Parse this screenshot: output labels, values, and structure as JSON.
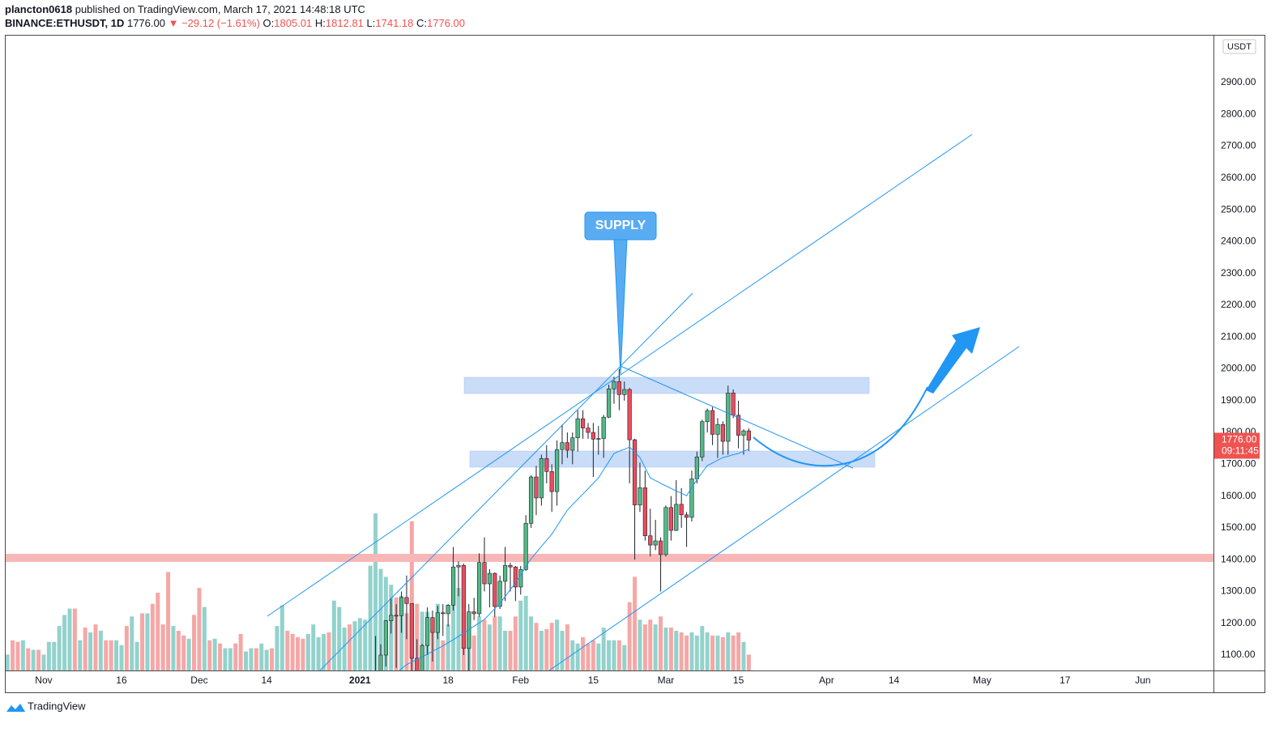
{
  "header": {
    "author": "plancton0618",
    "published": "published on TradingView.com, March 17, 2021 14:48:18 UTC",
    "symbol": "BINANCE:ETHUSDT, 1D",
    "last": "1776.00",
    "change": "▼ −29.12 (−1.61%)",
    "ohlc": [
      {
        "key": "O:",
        "value": "1805.01"
      },
      {
        "key": "H:",
        "value": "1812.81"
      },
      {
        "key": "L:",
        "value": "1741.18"
      },
      {
        "key": "C:",
        "value": "1776.00"
      }
    ]
  },
  "chart_data": {
    "type": "candlestick",
    "x": [
      64,
      65,
      66,
      67,
      68,
      69,
      70,
      71,
      72,
      73,
      74,
      75,
      76,
      77,
      78,
      79,
      80,
      81,
      82,
      83,
      84,
      85,
      86,
      87,
      88,
      89,
      90,
      91,
      92,
      93,
      94,
      95,
      96,
      97,
      98,
      99,
      100,
      101,
      102,
      103,
      104,
      105,
      106,
      107,
      108,
      109,
      110,
      111,
      112,
      113,
      114,
      115,
      116,
      117,
      118,
      119,
      120,
      121,
      122,
      123,
      124,
      125,
      126,
      127,
      128,
      129,
      130,
      131,
      132,
      133,
      134,
      135,
      136
    ],
    "open": [
      975,
      1041,
      1100,
      1208,
      1225,
      1224,
      1281,
      1262,
      1090,
      1044,
      1130,
      1218,
      1171,
      1233,
      1230,
      1257,
      1377,
      1382,
      1121,
      1236,
      1230,
      1391,
      1324,
      1357,
      1253,
      1332,
      1382,
      1377,
      1314,
      1369,
      1514,
      1660,
      1594,
      1718,
      1677,
      1614,
      1746,
      1768,
      1744,
      1783,
      1843,
      1814,
      1800,
      1779,
      1781,
      1848,
      1937,
      1960,
      1919,
      1935,
      1777,
      1572,
      1626,
      1475,
      1446,
      1459,
      1416,
      1564,
      1492,
      1574,
      1541,
      1533,
      1654,
      1723,
      1834,
      1869,
      1794,
      1825,
      1772,
      1924,
      1854,
      1791,
      1805.01
    ],
    "high": [
      1160,
      1134,
      1210,
      1280,
      1260,
      1300,
      1350,
      1263,
      1150,
      1135,
      1250,
      1240,
      1255,
      1260,
      1260,
      1440,
      1395,
      1388,
      1260,
      1280,
      1420,
      1470,
      1370,
      1360,
      1350,
      1440,
      1390,
      1380,
      1380,
      1540,
      1665,
      1695,
      1730,
      1760,
      1700,
      1775,
      1825,
      1800,
      1800,
      1870,
      1870,
      1830,
      1830,
      1820,
      1855,
      1950,
      1975,
      2000,
      1960,
      1940,
      1780,
      1705,
      1680,
      1560,
      1525,
      1470,
      1570,
      1600,
      1650,
      1625,
      1550,
      1680,
      1740,
      1840,
      1875,
      1880,
      1845,
      1835,
      1947,
      1935,
      1900,
      1810,
      1812.81
    ],
    "low": [
      890,
      986,
      1064,
      1168,
      1060,
      1170,
      1150,
      900,
      1030,
      1010,
      1100,
      1080,
      1150,
      1160,
      1190,
      1240,
      1285,
      1100,
      1050,
      1210,
      1220,
      1300,
      1250,
      1220,
      1245,
      1270,
      1300,
      1270,
      1290,
      1365,
      1500,
      1540,
      1570,
      1640,
      1550,
      1570,
      1700,
      1720,
      1700,
      1740,
      1780,
      1780,
      1660,
      1730,
      1720,
      1845,
      1890,
      1870,
      1900,
      1640,
      1400,
      1550,
      1460,
      1410,
      1430,
      1300,
      1410,
      1460,
      1490,
      1500,
      1440,
      1520,
      1640,
      1710,
      1800,
      1760,
      1720,
      1730,
      1730,
      1845,
      1750,
      1730,
      1741.18
    ],
    "close": [
      1040,
      1100,
      1208,
      1225,
      1224,
      1281,
      1262,
      1090,
      1044,
      1130,
      1218,
      1171,
      1233,
      1230,
      1257,
      1377,
      1382,
      1121,
      1236,
      1230,
      1391,
      1324,
      1357,
      1253,
      1332,
      1382,
      1377,
      1314,
      1369,
      1514,
      1660,
      1594,
      1718,
      1677,
      1614,
      1746,
      1768,
      1744,
      1783,
      1843,
      1814,
      1800,
      1779,
      1781,
      1848,
      1937,
      1960,
      1919,
      1935,
      1777,
      1572,
      1626,
      1475,
      1446,
      1459,
      1416,
      1564,
      1492,
      1574,
      1541,
      1533,
      1654,
      1723,
      1834,
      1869,
      1794,
      1825,
      1772,
      1924,
      1854,
      1791,
      1805,
      1776
    ],
    "up_color": "#53b987",
    "down_color": "#eb4d5c",
    "wick_color": "#1e222d",
    "ma": {
      "color": "#2196f3",
      "values": [
        980,
        997,
        1013,
        1030,
        1043,
        1057,
        1070,
        1078,
        1087,
        1095,
        1103,
        1112,
        1120,
        1129,
        1139,
        1148,
        1159,
        1169,
        1180,
        1191,
        1201,
        1212,
        1229,
        1246,
        1263,
        1284,
        1306,
        1327,
        1352,
        1378,
        1403,
        1422,
        1442,
        1461,
        1480,
        1505,
        1531,
        1556,
        1573,
        1590,
        1606,
        1623,
        1640,
        1657,
        1683,
        1708,
        1734,
        1741,
        1747,
        1754,
        1738,
        1721,
        1689,
        1657,
        1649,
        1640,
        1632,
        1624,
        1616,
        1609,
        1601,
        1627,
        1652,
        1674,
        1696,
        1704,
        1713,
        1721,
        1725,
        1730,
        1734,
        1741,
        1747
      ]
    },
    "volume": {
      "lim": [
        0,
        400
      ],
      "x": [
        -7,
        -6,
        -5,
        -4,
        -3,
        -2,
        -1,
        0,
        1,
        2,
        3,
        4,
        5,
        6,
        7,
        8,
        9,
        10,
        11,
        12,
        13,
        14,
        15,
        16,
        17,
        18,
        19,
        20,
        21,
        22,
        23,
        24,
        25,
        26,
        27,
        28,
        29,
        30,
        31,
        32,
        33,
        34,
        35,
        36,
        37,
        38,
        39,
        40,
        41,
        42,
        43,
        44,
        45,
        46,
        47,
        48,
        49,
        50,
        51,
        52,
        53,
        54,
        55,
        56,
        57,
        58,
        59,
        60,
        61,
        62,
        63,
        64,
        65,
        66,
        67,
        68,
        69,
        70,
        71,
        72,
        73,
        74,
        75,
        76,
        77,
        78,
        79,
        80,
        81,
        82,
        83,
        84,
        85,
        86,
        87,
        88,
        89,
        90,
        91,
        92,
        93,
        94,
        95,
        96,
        97,
        98,
        99,
        100,
        101,
        102,
        103,
        104,
        105,
        106,
        107,
        108,
        109,
        110,
        111,
        112,
        113,
        114,
        115,
        116,
        117,
        118,
        119,
        120,
        121,
        122,
        123,
        124,
        125,
        126,
        127,
        128,
        129,
        130,
        131,
        132,
        133,
        134,
        135,
        136
      ],
      "values": [
        10,
        19,
        18,
        19,
        14,
        13,
        13,
        10,
        18,
        18,
        28,
        35,
        39,
        39,
        19,
        27,
        24,
        29,
        25,
        19,
        19,
        19,
        16,
        28,
        34,
        18,
        36,
        36,
        42,
        49,
        29,
        62,
        28,
        25,
        22,
        20,
        35,
        52,
        40,
        19,
        20,
        17,
        14,
        14,
        17,
        23,
        12,
        14,
        14,
        17,
        13,
        14,
        28,
        41,
        25,
        23,
        21,
        20,
        23,
        29,
        21,
        23,
        24,
        44,
        40,
        27,
        29,
        31,
        33,
        32,
        66,
        99,
        64,
        59,
        54,
        46,
        47,
        36,
        94,
        42,
        37,
        37,
        24,
        42,
        19,
        29,
        64,
        52,
        37,
        34,
        22,
        34,
        32,
        29,
        34,
        34,
        25,
        25,
        34,
        44,
        47,
        34,
        30,
        25,
        26,
        30,
        32,
        25,
        29,
        19,
        17,
        21,
        17,
        19,
        17,
        27,
        19,
        19,
        19,
        16,
        43,
        59,
        32,
        29,
        32,
        29,
        34,
        27,
        27,
        25,
        24,
        22,
        24,
        22,
        28,
        24,
        22,
        22,
        21,
        24,
        22,
        24,
        18,
        10
      ],
      "colors": [
        "#92d2cc",
        "#f5a7a6",
        "#f5a7a6",
        "#92d2cc",
        "#f5a7a6",
        "#92d2cc",
        "#f5a7a6",
        "#92d2cc",
        "#92d2cc",
        "#92d2cc",
        "#92d2cc",
        "#92d2cc",
        "#92d2cc",
        "#f5a7a6",
        "#92d2cc",
        "#f5a7a6",
        "#92d2cc",
        "#f5a7a6",
        "#92d2cc",
        "#f5a7a6",
        "#f5a7a6",
        "#92d2cc",
        "#92d2cc",
        "#f5a7a6",
        "#92d2cc",
        "#92d2cc",
        "#f5a7a6",
        "#92d2cc",
        "#f5a7a6",
        "#f5a7a6",
        "#f5a7a6",
        "#f5a7a6",
        "#92d2cc",
        "#f5a7a6",
        "#f5a7a6",
        "#92d2cc",
        "#f5a7a6",
        "#f5a7a6",
        "#92d2cc",
        "#f5a7a6",
        "#92d2cc",
        "#f5a7a6",
        "#92d2cc",
        "#92d2cc",
        "#f5a7a6",
        "#f5a7a6",
        "#92d2cc",
        "#92d2cc",
        "#f5a7a6",
        "#92d2cc",
        "#92d2cc",
        "#f5a7a6",
        "#92d2cc",
        "#92d2cc",
        "#f5a7a6",
        "#f5a7a6",
        "#f5a7a6",
        "#f5a7a6",
        "#92d2cc",
        "#92d2cc",
        "#92d2cc",
        "#92d2cc",
        "#f5a7a6",
        "#92d2cc",
        "#92d2cc",
        "#92d2cc",
        "#f5a7a6",
        "#92d2cc",
        "#92d2cc",
        "#92d2cc",
        "#92d2cc",
        "#92d2cc",
        "#92d2cc",
        "#92d2cc",
        "#92d2cc",
        "#f5a7a6",
        "#92d2cc",
        "#f5a7a6",
        "#f5a7a6",
        "#f5a7a6",
        "#92d2cc",
        "#92d2cc",
        "#f5a7a6",
        "#92d2cc",
        "#f5a7a6",
        "#92d2cc",
        "#92d2cc",
        "#92d2cc",
        "#f5a7a6",
        "#92d2cc",
        "#f5a7a6",
        "#92d2cc",
        "#f5a7a6",
        "#92d2cc",
        "#f5a7a6",
        "#92d2cc",
        "#92d2cc",
        "#f5a7a6",
        "#f5a7a6",
        "#92d2cc",
        "#92d2cc",
        "#92d2cc",
        "#f5a7a6",
        "#92d2cc",
        "#f5a7a6",
        "#f5a7a6",
        "#92d2cc",
        "#92d2cc",
        "#f5a7a6",
        "#92d2cc",
        "#92d2cc",
        "#f5a7a6",
        "#f5a7a6",
        "#f5a7a6",
        "#92d2cc",
        "#92d2cc",
        "#92d2cc",
        "#92d2cc",
        "#f5a7a6",
        "#92d2cc",
        "#f5a7a6",
        "#f5a7a6",
        "#92d2cc",
        "#f5a7a6",
        "#f5a7a6",
        "#92d2cc",
        "#f5a7a6",
        "#92d2cc",
        "#f5a7a6",
        "#92d2cc",
        "#f5a7a6",
        "#f5a7a6",
        "#92d2cc",
        "#92d2cc",
        "#92d2cc",
        "#92d2cc",
        "#f5a7a6",
        "#92d2cc",
        "#f5a7a6",
        "#92d2cc",
        "#f5a7a6",
        "#f5a7a6",
        "#92d2cc",
        "#f5a7a6"
      ]
    },
    "xlim": [
      -7.34,
      225.63
    ],
    "xticks": [
      {
        "value": 0,
        "label": "Nov"
      },
      {
        "value": 15,
        "label": "16"
      },
      {
        "value": 30,
        "label": "Dec"
      },
      {
        "value": 43,
        "label": "14"
      },
      {
        "value": 61,
        "label": "2021"
      },
      {
        "value": 78,
        "label": "18"
      },
      {
        "value": 92,
        "label": "Feb"
      },
      {
        "value": 106,
        "label": "15"
      },
      {
        "value": 120,
        "label": "Mar"
      },
      {
        "value": 134,
        "label": "15"
      },
      {
        "value": 151,
        "label": "Apr"
      },
      {
        "value": 164,
        "label": "14"
      },
      {
        "value": 181,
        "label": "May"
      },
      {
        "value": 197,
        "label": "17"
      },
      {
        "value": 212,
        "label": "Jun"
      }
    ],
    "ylim": [
      1051.63,
      3047.6
    ],
    "yticks": [
      {
        "value": 1100,
        "label": "1100.00"
      },
      {
        "value": 1200,
        "label": "1200.00"
      },
      {
        "value": 1300,
        "label": "1300.00"
      },
      {
        "value": 1400,
        "label": "1400.00"
      },
      {
        "value": 1500,
        "label": "1500.00"
      },
      {
        "value": 1600,
        "label": "1600.00"
      },
      {
        "value": 1700,
        "label": "1700.00"
      },
      {
        "value": 1800,
        "label": "1800.00"
      },
      {
        "value": 1900,
        "label": "1900.00"
      },
      {
        "value": 2000,
        "label": "2000.00"
      },
      {
        "value": 2100,
        "label": "2100.00"
      },
      {
        "value": 2200,
        "label": "2200.00"
      },
      {
        "value": 2300,
        "label": "2300.00"
      },
      {
        "value": 2400,
        "label": "2400.00"
      },
      {
        "value": 2500,
        "label": "2500.00"
      },
      {
        "value": 2600,
        "label": "2600.00"
      },
      {
        "value": 2700,
        "label": "2700.00"
      },
      {
        "value": 2800,
        "label": "2800.00"
      },
      {
        "value": 2900,
        "label": "2900.00"
      }
    ],
    "grid": false,
    "currency": "USDT",
    "last_price": {
      "value": 1776,
      "label": "1776.00"
    },
    "countdown": "09:11:45",
    "annotation": "SUPPLY"
  },
  "footer": {
    "brand": "TradingView"
  }
}
